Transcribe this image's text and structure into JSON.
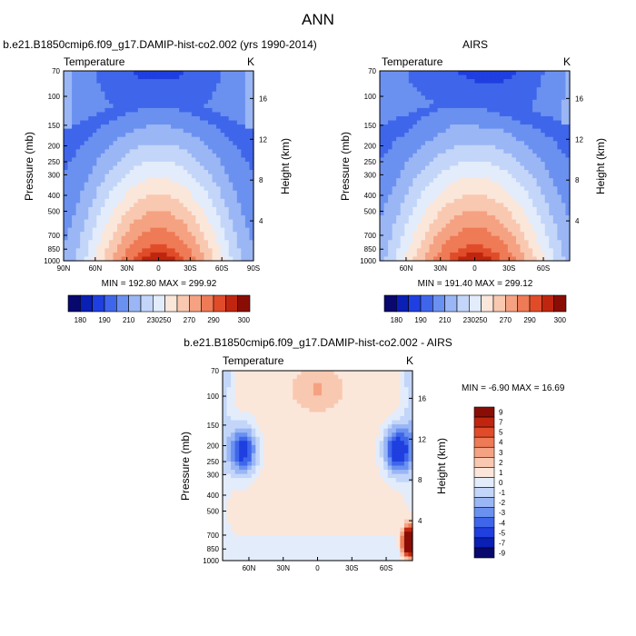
{
  "page_title": "ANN",
  "chart_data": [
    {
      "type": "heatmap",
      "id": "model",
      "title": "b.e21.B1850cmip6.f09_g17.DAMIP-hist-co2.002 (yrs 1990-2014)",
      "left_label": "Temperature",
      "right_label": "K",
      "ylabel": "Pressure (mb)",
      "y2label": "Height (km)",
      "lat_ticks": [
        "90N",
        "60N",
        "30N",
        "0",
        "30S",
        "60S",
        "90S"
      ],
      "pressure_ticks": [
        "70",
        "100",
        "150",
        "200",
        "250",
        "300",
        "400",
        "500",
        "700",
        "850",
        "1000"
      ],
      "height_ticks": [
        "4",
        "8",
        "12",
        "16"
      ],
      "ylim_mb": [
        1000,
        70
      ],
      "min_max_text": "MIN = 192.80   MAX = 299.92",
      "min": 192.8,
      "max": 299.92,
      "colorbar_labels": [
        "180",
        "190",
        "210",
        "230",
        "250",
        "270",
        "290",
        "300"
      ]
    },
    {
      "type": "heatmap",
      "id": "obs",
      "title": "AIRS",
      "left_label": "Temperature",
      "right_label": "K",
      "ylabel": "Pressure (mb)",
      "y2label": "Height (km)",
      "lat_ticks": [
        "60N",
        "30N",
        "0",
        "30S",
        "60S"
      ],
      "pressure_ticks": [
        "70",
        "100",
        "150",
        "200",
        "250",
        "300",
        "400",
        "500",
        "700",
        "850",
        "1000"
      ],
      "height_ticks": [
        "4",
        "8",
        "12",
        "16"
      ],
      "ylim_mb": [
        1000,
        70
      ],
      "min_max_text": "MIN = 191.40   MAX = 299.12",
      "min": 191.4,
      "max": 299.12,
      "colorbar_labels": [
        "180",
        "190",
        "210",
        "230",
        "250",
        "270",
        "290",
        "300"
      ]
    },
    {
      "type": "heatmap",
      "id": "diff",
      "title": "b.e21.B1850cmip6.f09_g17.DAMIP-hist-co2.002 - AIRS",
      "left_label": "Temperature",
      "right_label": "K",
      "ylabel": "Pressure (mb)",
      "y2label": "Height (km)",
      "lat_ticks": [
        "60N",
        "30N",
        "0",
        "30S",
        "60S"
      ],
      "pressure_ticks": [
        "70",
        "100",
        "150",
        "200",
        "250",
        "300",
        "400",
        "500",
        "700",
        "850",
        "1000"
      ],
      "height_ticks": [
        "4",
        "8",
        "12",
        "16"
      ],
      "ylim_mb": [
        1000,
        70
      ],
      "min_max_text": "MIN =  -6.90   MAX =  16.69",
      "min": -6.9,
      "max": 16.69,
      "colorbar_labels": [
        "9",
        "7",
        "5",
        "4",
        "3",
        "2",
        "1",
        "0",
        "-1",
        "-2",
        "-3",
        "-4",
        "-5",
        "-7",
        "-9"
      ]
    }
  ],
  "colors": {
    "abs_scale": [
      "#08086e",
      "#0a1fb4",
      "#1f3fe0",
      "#3f66ea",
      "#6b91f0",
      "#9ab6f5",
      "#c3d6f9",
      "#e3ecfb",
      "#fbe6da",
      "#f9c8b0",
      "#f5a282",
      "#ee7a56",
      "#e04c29",
      "#c0260f",
      "#8a0d05"
    ],
    "diff_scale": [
      "#08086e",
      "#0a1fb4",
      "#1f3fe0",
      "#3f66ea",
      "#6b91f0",
      "#9ab6f5",
      "#c3d6f9",
      "#e3ecfb",
      "#fbe6da",
      "#f9c8b0",
      "#f5a282",
      "#ee7a56",
      "#e04c29",
      "#c0260f",
      "#8a0d05"
    ]
  }
}
